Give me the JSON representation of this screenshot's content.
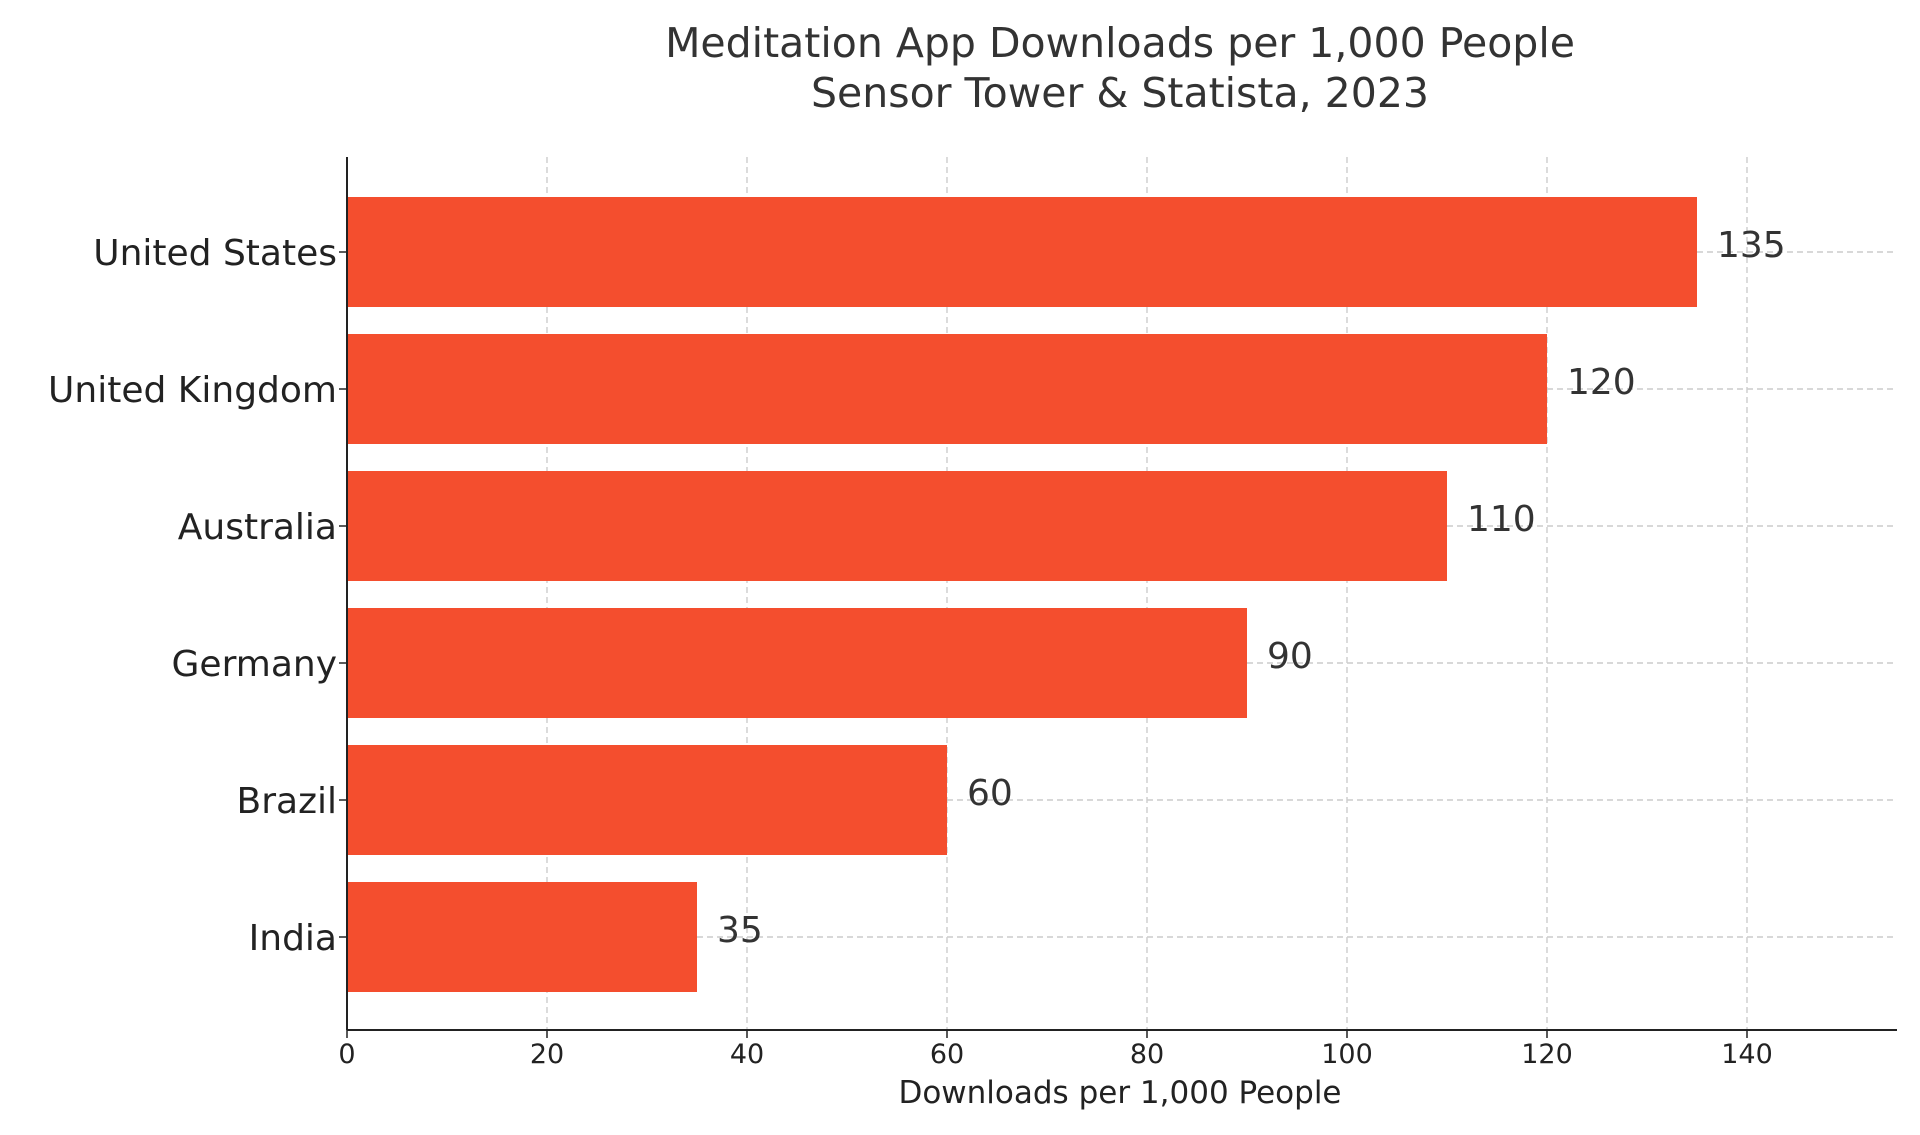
{
  "chart_data": {
    "type": "bar",
    "orientation": "horizontal",
    "title": "Meditation App Downloads per 1,000 People",
    "subtitle": "Sensor Tower & Statista, 2023",
    "xlabel": "Downloads per 1,000 People",
    "ylabel": "",
    "categories": [
      "United States",
      "United Kingdom",
      "Australia",
      "Germany",
      "Brazil",
      "India"
    ],
    "values": [
      135,
      120,
      110,
      90,
      60,
      35
    ],
    "data_labels": [
      "135",
      "120",
      "110",
      "90",
      "60",
      "35"
    ],
    "xlim": [
      0,
      155
    ],
    "xticks": [
      0,
      20,
      40,
      60,
      80,
      100,
      120,
      140
    ],
    "xtick_labels": [
      "0",
      "20",
      "40",
      "60",
      "80",
      "100",
      "120",
      "140"
    ],
    "grid": true,
    "grid_style": "dashed",
    "legend": "none",
    "colors": {
      "bar": "#F44E2E",
      "grid": "#cccccc",
      "axis": "#222222",
      "text": "#333333"
    }
  }
}
